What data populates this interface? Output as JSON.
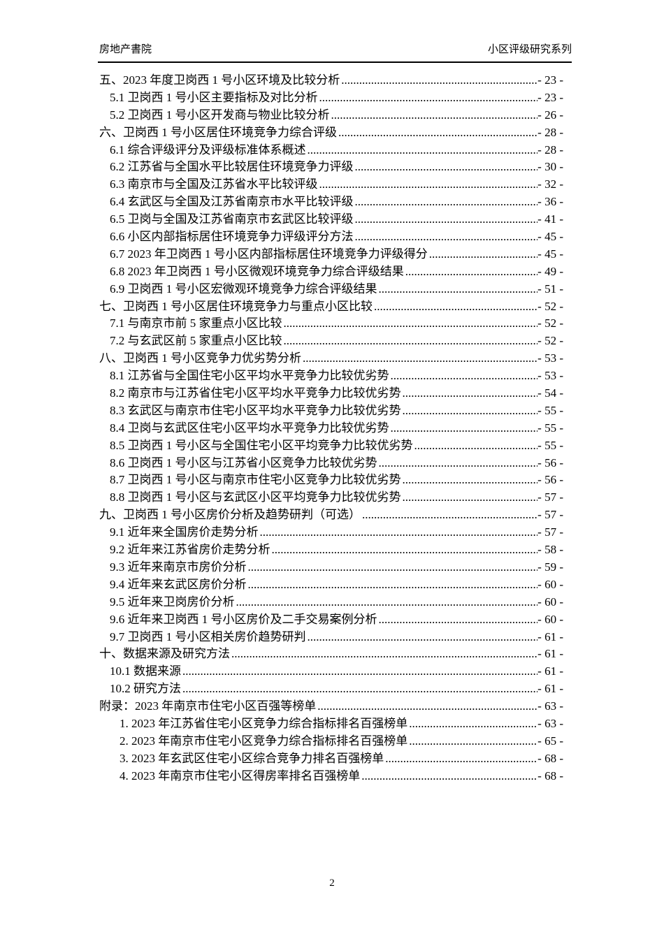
{
  "header": {
    "left": "房地产書院",
    "right": "小区评级研究系列"
  },
  "footer": {
    "page_number": "2"
  },
  "toc": {
    "entries": [
      {
        "level": 0,
        "title": "五、2023 年度卫岗西 1 号小区环境及比较分析",
        "page": "- 23 -"
      },
      {
        "level": 1,
        "title": "5.1 卫岗西 1 号小区主要指标及对比分析",
        "page": "- 23 -"
      },
      {
        "level": 1,
        "title": "5.2 卫岗西 1 号小区开发商与物业比较分析",
        "page": "- 26 -"
      },
      {
        "level": 0,
        "title": "六、卫岗西 1 号小区居住环境竞争力综合评级",
        "page": "- 28 -"
      },
      {
        "level": 1,
        "title": "6.1 综合评级评分及评级标准体系概述",
        "page": "- 28 -"
      },
      {
        "level": 1,
        "title": "6.2 江苏省与全国水平比较居住环境竞争力评级",
        "page": "- 30 -"
      },
      {
        "level": 1,
        "title": "6.3 南京市与全国及江苏省水平比较评级",
        "page": "- 32 -"
      },
      {
        "level": 1,
        "title": "6.4 玄武区与全国及江苏省南京市水平比较评级",
        "page": "- 36 -"
      },
      {
        "level": 1,
        "title": "6.5 卫岗与全国及江苏省南京市玄武区比较评级",
        "page": "- 41 -"
      },
      {
        "level": 1,
        "title": "6.6 小区内部指标居住环境竞争力评级评分方法",
        "page": "- 45 -"
      },
      {
        "level": 1,
        "title": "6.7 2023 年卫岗西 1 号小区内部指标居住环境竞争力评级得分",
        "page": "- 45 -"
      },
      {
        "level": 1,
        "title": "6.8 2023 年卫岗西 1 号小区微观环境竞争力综合评级结果",
        "page": "- 49 -"
      },
      {
        "level": 1,
        "title": "6.9 卫岗西 1 号小区宏微观环境竞争力综合评级结果",
        "page": "- 51 -"
      },
      {
        "level": 0,
        "title": "七、卫岗西 1 号小区居住环境竞争力与重点小区比较",
        "page": "- 52 -"
      },
      {
        "level": 1,
        "title": "7.1 与南京市前 5 家重点小区比较",
        "page": "- 52 -"
      },
      {
        "level": 1,
        "title": "7.2 与玄武区前 5 家重点小区比较",
        "page": "- 52 -"
      },
      {
        "level": 0,
        "title": "八、卫岗西 1 号小区竞争力优劣势分析",
        "page": "- 53 -"
      },
      {
        "level": 1,
        "title": "8.1 江苏省与全国住宅小区平均水平竞争力比较优劣势",
        "page": "- 53 -"
      },
      {
        "level": 1,
        "title": "8.2 南京市与江苏省住宅小区平均水平竞争力比较优劣势",
        "page": "- 54 -"
      },
      {
        "level": 1,
        "title": "8.3 玄武区与南京市住宅小区平均水平竞争力比较优劣势",
        "page": "- 55 -"
      },
      {
        "level": 1,
        "title": "8.4 卫岗与玄武区住宅小区平均水平竞争力比较优劣势",
        "page": "- 55 -"
      },
      {
        "level": 1,
        "title": "8.5 卫岗西 1 号小区与全国住宅小区平均竞争力比较优劣势",
        "page": "- 55 -"
      },
      {
        "level": 1,
        "title": "8.6 卫岗西 1 号小区与江苏省小区竞争力比较优劣势",
        "page": "- 56 -"
      },
      {
        "level": 1,
        "title": "8.7 卫岗西 1 号小区与南京市住宅小区竞争力比较优劣势",
        "page": "- 56 -"
      },
      {
        "level": 1,
        "title": "8.8 卫岗西 1 号小区与玄武区小区平均竞争力比较优劣势",
        "page": "- 57 -"
      },
      {
        "level": 0,
        "title": "九、卫岗西 1 号小区房价分析及趋势研判（可选）",
        "page": "- 57 -"
      },
      {
        "level": 1,
        "title": "9.1 近年来全国房价走势分析",
        "page": "- 57 -"
      },
      {
        "level": 1,
        "title": "9.2 近年来江苏省房价走势分析",
        "page": "- 58 -"
      },
      {
        "level": 1,
        "title": "9.3 近年来南京市房价分析",
        "page": "- 59 -"
      },
      {
        "level": 1,
        "title": "9.4 近年来玄武区房价分析",
        "page": "- 60 -"
      },
      {
        "level": 1,
        "title": "9.5 近年来卫岗房价分析",
        "page": "- 60 -"
      },
      {
        "level": 1,
        "title": "9.6 近年来卫岗西 1 号小区房价及二手交易案例分析",
        "page": "- 60 -"
      },
      {
        "level": 1,
        "title": "9.7 卫岗西 1 号小区相关房价趋势研判",
        "page": "- 61 -"
      },
      {
        "level": 0,
        "title": "十、数据来源及研究方法",
        "page": "- 61 -"
      },
      {
        "level": 1,
        "title": "10.1 数据来源",
        "page": "- 61 -"
      },
      {
        "level": 1,
        "title": "10.2 研究方法",
        "page": "- 61 -"
      },
      {
        "level": 0,
        "title": "附录：2023 年南京市住宅小区百强等榜单",
        "page": "- 63 -"
      },
      {
        "level": 2,
        "title": "1. 2023 年江苏省住宅小区竞争力综合指标排名百强榜单",
        "page": "- 63 -"
      },
      {
        "level": 2,
        "title": "2. 2023 年南京市住宅小区竞争力综合指标排名百强榜单",
        "page": "- 65 -"
      },
      {
        "level": 2,
        "title": "3. 2023 年玄武区住宅小区综合竞争力排名百强榜单",
        "page": "- 68 -"
      },
      {
        "level": 2,
        "title": "4. 2023 年南京市住宅小区得房率排名百强榜单",
        "page": "- 68 -"
      }
    ]
  }
}
